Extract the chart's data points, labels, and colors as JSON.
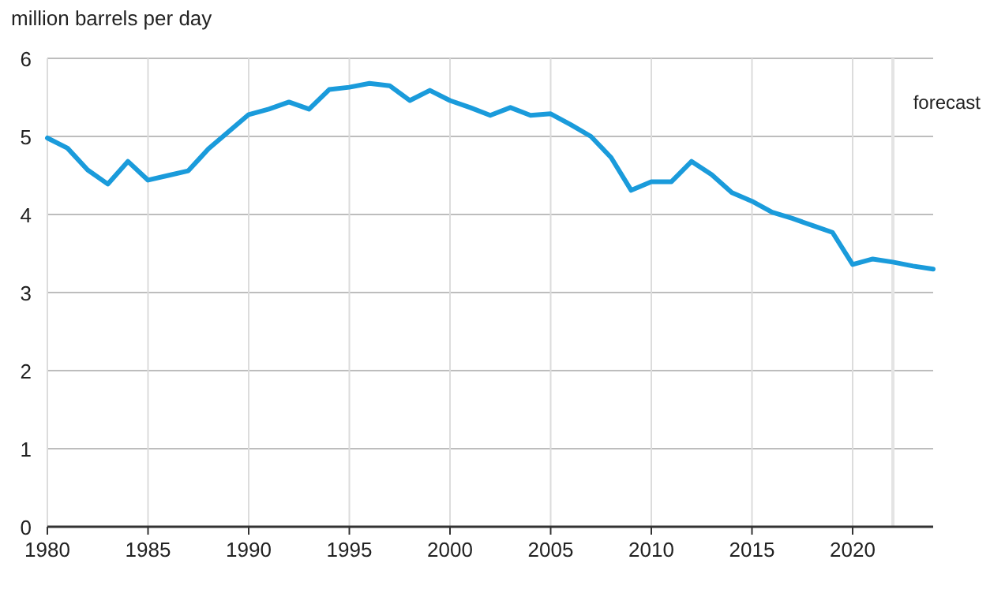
{
  "chart_data": {
    "type": "line",
    "ylabel": "million barrels per day",
    "x": [
      1980,
      1981,
      1982,
      1983,
      1984,
      1985,
      1986,
      1987,
      1988,
      1989,
      1990,
      1991,
      1992,
      1993,
      1994,
      1995,
      1996,
      1997,
      1998,
      1999,
      2000,
      2001,
      2002,
      2003,
      2004,
      2005,
      2006,
      2007,
      2008,
      2009,
      2010,
      2011,
      2012,
      2013,
      2014,
      2015,
      2016,
      2017,
      2018,
      2019,
      2020,
      2021,
      2022,
      2023,
      2024
    ],
    "series": [
      {
        "color": "#1a9bdb",
        "values": [
          4.98,
          4.85,
          4.57,
          4.39,
          4.68,
          4.44,
          4.5,
          4.56,
          4.84,
          5.06,
          5.28,
          5.35,
          5.44,
          5.35,
          5.6,
          5.63,
          5.68,
          5.65,
          5.46,
          5.59,
          5.46,
          5.37,
          5.27,
          5.37,
          5.27,
          5.29,
          5.15,
          5.0,
          4.73,
          4.31,
          4.42,
          4.42,
          4.68,
          4.51,
          4.28,
          4.17,
          4.03,
          3.95,
          3.86,
          3.77,
          3.36,
          3.43,
          3.39,
          3.34,
          3.3
        ]
      }
    ],
    "xlim": [
      1980,
      2024
    ],
    "xticks": [
      1980,
      1985,
      1990,
      1995,
      2000,
      2005,
      2010,
      2015,
      2020
    ],
    "ylim": [
      0,
      6
    ],
    "yticks": [
      0,
      1,
      2,
      3,
      4,
      5,
      6
    ],
    "grid": true,
    "marker": "none",
    "line_style": "solid",
    "ref_lines": [
      {
        "axis": "x",
        "value": 2022,
        "label": "forecast",
        "color": "#e4e4e4"
      }
    ]
  }
}
